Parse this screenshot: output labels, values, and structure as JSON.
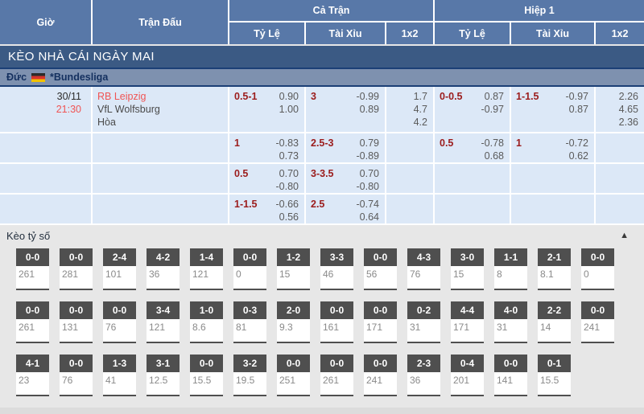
{
  "header": {
    "col_time": "Giờ",
    "col_match": "Trận Đấu",
    "group_full": "Cả Trận",
    "group_half": "Hiệp 1",
    "sub_odds": "Tỷ Lệ",
    "sub_overunder": "Tài Xỉu",
    "sub_1x2": "1x2"
  },
  "banner": "KÈO NHÀ CÁI NGÀY MAI",
  "league": {
    "country": "Đức",
    "flag_icon": "germany-flag",
    "name": "*Bundesliga"
  },
  "match": {
    "date": "30/11",
    "time": "21:30",
    "home": "RB Leipzig",
    "away": "VfL Wolfsburg",
    "draw_label": "Hòa"
  },
  "odds_rows": [
    {
      "ft_hdp": {
        "line": "0.5-1",
        "odds": [
          "0.90",
          "1.00"
        ]
      },
      "ft_ou": {
        "line": "3",
        "odds": [
          "-0.99",
          "0.89"
        ]
      },
      "ft_1x2": [
        "1.7",
        "4.7",
        "4.2"
      ],
      "h1_hdp": {
        "line": "0-0.5",
        "odds": [
          "0.87",
          "-0.97"
        ]
      },
      "h1_ou": {
        "line": "1-1.5",
        "odds": [
          "-0.97",
          "0.87"
        ]
      },
      "h1_1x2": [
        "2.26",
        "4.65",
        "2.36"
      ]
    },
    {
      "ft_hdp": {
        "line": "1",
        "odds": [
          "-0.83",
          "0.73"
        ]
      },
      "ft_ou": {
        "line": "2.5-3",
        "odds": [
          "0.79",
          "-0.89"
        ]
      },
      "ft_1x2": [],
      "h1_hdp": {
        "line": "0.5",
        "odds": [
          "-0.78",
          "0.68"
        ]
      },
      "h1_ou": {
        "line": "1",
        "odds": [
          "-0.72",
          "0.62"
        ]
      },
      "h1_1x2": []
    },
    {
      "ft_hdp": {
        "line": "0.5",
        "odds": [
          "0.70",
          "-0.80"
        ]
      },
      "ft_ou": {
        "line": "3-3.5",
        "odds": [
          "0.70",
          "-0.80"
        ]
      },
      "ft_1x2": [],
      "h1_hdp": {
        "line": "",
        "odds": []
      },
      "h1_ou": {
        "line": "",
        "odds": []
      },
      "h1_1x2": []
    },
    {
      "ft_hdp": {
        "line": "1-1.5",
        "odds": [
          "-0.66",
          "0.56"
        ]
      },
      "ft_ou": {
        "line": "2.5",
        "odds": [
          "-0.74",
          "0.64"
        ]
      },
      "ft_1x2": [],
      "h1_hdp": {
        "line": "",
        "odds": []
      },
      "h1_ou": {
        "line": "",
        "odds": []
      },
      "h1_1x2": []
    }
  ],
  "score_section": {
    "title": "Kèo tỷ số",
    "collapse_icon": "▲",
    "rows": [
      [
        {
          "score": "0-0",
          "value": "261"
        },
        {
          "score": "0-0",
          "value": "281"
        },
        {
          "score": "2-4",
          "value": "101"
        },
        {
          "score": "4-2",
          "value": "36"
        },
        {
          "score": "1-4",
          "value": "121"
        },
        {
          "score": "0-0",
          "value": "0"
        },
        {
          "score": "1-2",
          "value": "15"
        },
        {
          "score": "3-3",
          "value": "46"
        },
        {
          "score": "0-0",
          "value": "56"
        },
        {
          "score": "4-3",
          "value": "76"
        },
        {
          "score": "3-0",
          "value": "15"
        },
        {
          "score": "1-1",
          "value": "8"
        },
        {
          "score": "2-1",
          "value": "8.1"
        },
        {
          "score": "0-0",
          "value": "0"
        }
      ],
      [
        {
          "score": "0-0",
          "value": "261"
        },
        {
          "score": "0-0",
          "value": "131"
        },
        {
          "score": "0-0",
          "value": "76"
        },
        {
          "score": "3-4",
          "value": "121"
        },
        {
          "score": "1-0",
          "value": "8.6"
        },
        {
          "score": "0-3",
          "value": "81"
        },
        {
          "score": "2-0",
          "value": "9.3"
        },
        {
          "score": "0-0",
          "value": "161"
        },
        {
          "score": "0-0",
          "value": "171"
        },
        {
          "score": "0-2",
          "value": "31"
        },
        {
          "score": "4-4",
          "value": "171"
        },
        {
          "score": "4-0",
          "value": "31"
        },
        {
          "score": "2-2",
          "value": "14"
        },
        {
          "score": "0-0",
          "value": "241"
        }
      ],
      [
        {
          "score": "4-1",
          "value": "23"
        },
        {
          "score": "0-0",
          "value": "76"
        },
        {
          "score": "1-3",
          "value": "41"
        },
        {
          "score": "3-1",
          "value": "12.5"
        },
        {
          "score": "0-0",
          "value": "15.5"
        },
        {
          "score": "3-2",
          "value": "19.5"
        },
        {
          "score": "0-0",
          "value": "251"
        },
        {
          "score": "0-0",
          "value": "261"
        },
        {
          "score": "0-0",
          "value": "241"
        },
        {
          "score": "2-3",
          "value": "36"
        },
        {
          "score": "0-4",
          "value": "201"
        },
        {
          "score": "0-0",
          "value": "141"
        },
        {
          "score": "0-1",
          "value": "15.5"
        }
      ]
    ]
  },
  "colors": {
    "header_blue": "#5878a8",
    "banner_blue": "#3b5a84",
    "league_bg": "#7e91af",
    "league_border": "#1b3f76",
    "row_bg": "#dce8f7",
    "team_red": "#f05454",
    "handicap_red": "#9b1c1c",
    "badge_gray": "#4f4f4f"
  }
}
